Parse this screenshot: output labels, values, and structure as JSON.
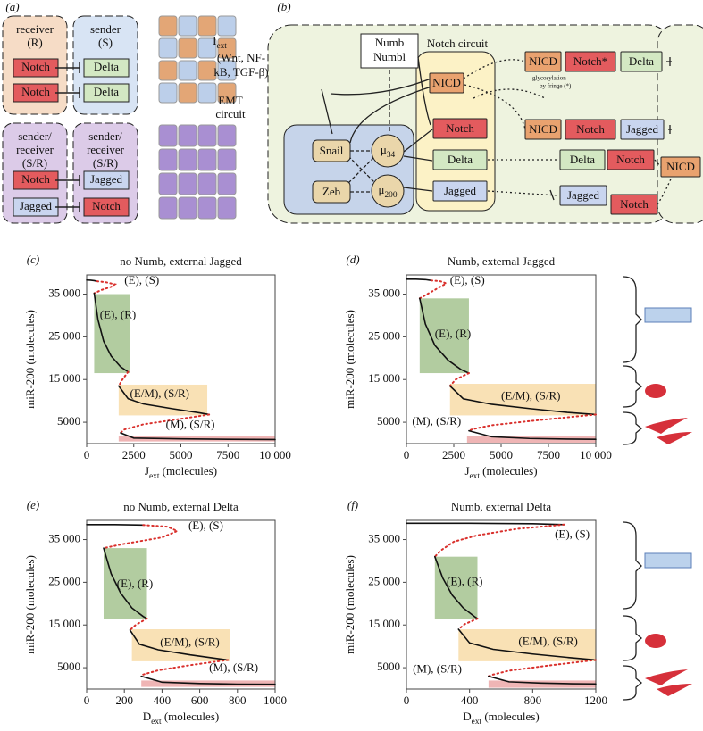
{
  "panel_a": {
    "label": "(a)",
    "cells": [
      {
        "title": [
          "receiver",
          "(R)"
        ],
        "genes": [
          "Notch",
          "Notch"
        ]
      },
      {
        "title": [
          "sender",
          "(S)"
        ],
        "genes": [
          "Delta",
          "Delta"
        ]
      },
      {
        "title": [
          "sender/",
          "receiver",
          "(S/R)"
        ],
        "genes": [
          "Notch",
          "Jagged"
        ]
      },
      {
        "title": [
          "sender/",
          "receiver",
          "(S/R)"
        ],
        "genes": [
          "Jagged",
          "Notch"
        ]
      }
    ]
  },
  "panel_b": {
    "label": "(b)",
    "input": {
      "symbol": "I",
      "sub": "ext",
      "lines": [
        "(Wnt, NF-",
        "kB, TGF-β)"
      ]
    },
    "emt_label": [
      "EMT",
      "circuit"
    ],
    "numb": [
      "Numb",
      "Numbl"
    ],
    "notch_label": "Notch circuit",
    "fringe_note": [
      "glycosylation",
      "by fringe (*)"
    ],
    "mirs": [
      {
        "symbol": "μ",
        "sub": "34"
      },
      {
        "symbol": "μ",
        "sub": "200"
      }
    ],
    "boxes": [
      "NICD",
      "Notch",
      "Delta",
      "Jagged",
      "Snail",
      "Zeb",
      "NICD",
      "Notch*",
      "Delta",
      "NICD",
      "Notch",
      "Jagged",
      "Delta",
      "Notch",
      "NICD",
      "Jagged",
      "Notch"
    ]
  },
  "chart_data": [
    {
      "type": "line",
      "panel": "(c)",
      "title": "no Numb, external Jagged",
      "xlabel": [
        "J",
        "ext",
        " (molecules)"
      ],
      "ylabel": "miR-200 (molecules)",
      "xlim": [
        0,
        10000
      ],
      "ylim": [
        0,
        39500
      ],
      "xticks": [
        0,
        2500,
        5000,
        7500,
        {
          "value": 10000,
          "label": "10 000"
        }
      ],
      "yticks": [
        5000,
        {
          "value": 15000,
          "label": "15 000"
        },
        {
          "value": 25000,
          "label": "25 000"
        },
        {
          "value": 35000,
          "label": "35 000"
        }
      ],
      "regions": [
        {
          "color": "#9fbf88",
          "xlim": [
            400,
            2300
          ],
          "ylim": [
            16500,
            35000
          ]
        },
        {
          "color": "#f7d9a2",
          "xlim": [
            1700,
            6400
          ],
          "ylim": [
            6600,
            13800
          ]
        },
        {
          "color": "#eba3a3",
          "xlim": [
            1700,
            10000
          ],
          "ylim": [
            500,
            1800
          ]
        }
      ],
      "series": [
        {
          "color": "#111",
          "style": "solid",
          "x": [
            0,
            200,
            400,
            550
          ],
          "values": [
            38300,
            38250,
            38150,
            38000
          ]
        },
        {
          "color": "#d9302c",
          "style": "dotted",
          "x": [
            550,
            1000,
            1500,
            1300,
            800,
            400
          ],
          "values": [
            38000,
            37800,
            37300,
            36700,
            36000,
            35200
          ]
        },
        {
          "color": "#111",
          "style": "solid",
          "x": [
            400,
            600,
            900,
            1300,
            1800,
            2200
          ],
          "values": [
            35200,
            29000,
            24000,
            20500,
            18000,
            16800
          ]
        },
        {
          "color": "#d9302c",
          "style": "dotted",
          "x": [
            2200,
            1900,
            1700
          ],
          "values": [
            16800,
            15000,
            13500
          ]
        },
        {
          "color": "#111",
          "style": "solid",
          "x": [
            1700,
            2200,
            3000,
            4500,
            6000,
            6500
          ],
          "values": [
            13500,
            10500,
            9300,
            8200,
            7200,
            6800
          ]
        },
        {
          "color": "#d9302c",
          "style": "dotted",
          "x": [
            6500,
            5000,
            3000,
            2000,
            1800
          ],
          "values": [
            6800,
            5800,
            4500,
            3300,
            2500
          ]
        },
        {
          "color": "#111",
          "style": "solid",
          "x": [
            1800,
            2500,
            5000,
            7500,
            10000
          ],
          "values": [
            2500,
            1300,
            1100,
            1000,
            950
          ]
        }
      ],
      "annotations": [
        {
          "text": "(E), (S)",
          "x": 2000,
          "y": 38000
        },
        {
          "text": "(E), (R)",
          "x": 700,
          "y": 30000
        },
        {
          "text": "(E/M), (S/R)",
          "x": 2300,
          "y": 11500
        },
        {
          "text": "(M), (S/R)",
          "x": 4200,
          "y": 4300
        }
      ]
    },
    {
      "type": "line",
      "panel": "(d)",
      "title": "Numb, external Jagged",
      "xlabel": [
        "J",
        "ext",
        " (molecules)"
      ],
      "ylabel": "miR-200 (molecules)",
      "xlim": [
        0,
        10000
      ],
      "ylim": [
        0,
        39500
      ],
      "xticks": [
        0,
        2500,
        5000,
        7500,
        {
          "value": 10000,
          "label": "10 000"
        }
      ],
      "yticks": [
        5000,
        {
          "value": 15000,
          "label": "15 000"
        },
        {
          "value": 25000,
          "label": "25 000"
        },
        {
          "value": 35000,
          "label": "35 000"
        }
      ],
      "regions": [
        {
          "color": "#9fbf88",
          "xlim": [
            700,
            3300
          ],
          "ylim": [
            16500,
            34000
          ]
        },
        {
          "color": "#f7d9a2",
          "xlim": [
            2300,
            10000
          ],
          "ylim": [
            6600,
            14000
          ]
        },
        {
          "color": "#eba3a3",
          "xlim": [
            3200,
            10000
          ],
          "ylim": [
            200,
            1800
          ]
        }
      ],
      "series": [
        {
          "color": "#111",
          "style": "solid",
          "x": [
            0,
            500,
            1000,
            1300
          ],
          "values": [
            38500,
            38500,
            38400,
            38200
          ]
        },
        {
          "color": "#d9302c",
          "style": "dotted",
          "x": [
            1300,
            1800,
            2100,
            1700,
            1100,
            700
          ],
          "values": [
            38200,
            38000,
            37500,
            36500,
            35000,
            34000
          ]
        },
        {
          "color": "#111",
          "style": "solid",
          "x": [
            700,
            1000,
            1500,
            2200,
            2900,
            3300
          ],
          "values": [
            34000,
            28000,
            23000,
            19500,
            17300,
            16500
          ]
        },
        {
          "color": "#d9302c",
          "style": "dotted",
          "x": [
            3300,
            2600,
            2300
          ],
          "values": [
            16500,
            15000,
            13500
          ]
        },
        {
          "color": "#111",
          "style": "solid",
          "x": [
            2300,
            3000,
            4500,
            6500,
            8500,
            10000
          ],
          "values": [
            13500,
            10500,
            9200,
            8200,
            7300,
            6800
          ]
        },
        {
          "color": "#d9302c",
          "style": "dotted",
          "x": [
            10000,
            7000,
            4500,
            3500,
            3300
          ],
          "values": [
            6800,
            5500,
            4300,
            3400,
            3000
          ]
        },
        {
          "color": "#111",
          "style": "solid",
          "x": [
            3300,
            4500,
            6500,
            8500,
            10000
          ],
          "values": [
            3000,
            1600,
            1200,
            1050,
            1000
          ]
        }
      ],
      "annotations": [
        {
          "text": "(E), (S)",
          "x": 2300,
          "y": 38000
        },
        {
          "text": "(E), (R)",
          "x": 1500,
          "y": 25500
        },
        {
          "text": "(E/M), (S/R)",
          "x": 5000,
          "y": 11000
        },
        {
          "text": "(M), (S/R)",
          "x": 300,
          "y": 5000
        }
      ]
    },
    {
      "type": "line",
      "panel": "(e)",
      "title": "no Numb, external Delta",
      "xlabel": [
        "D",
        "ext",
        " (molecules)"
      ],
      "ylabel": "miR-200 (molecules)",
      "xlim": [
        0,
        1000
      ],
      "ylim": [
        0,
        39500
      ],
      "xticks": [
        0,
        200,
        400,
        600,
        800,
        1000
      ],
      "yticks": [
        5000,
        {
          "value": 15000,
          "label": "15 000"
        },
        {
          "value": 25000,
          "label": "25 000"
        },
        {
          "value": 35000,
          "label": "35 000"
        }
      ],
      "regions": [
        {
          "color": "#9fbf88",
          "xlim": [
            90,
            320
          ],
          "ylim": [
            16500,
            33000
          ]
        },
        {
          "color": "#f7d9a2",
          "xlim": [
            240,
            760
          ],
          "ylim": [
            6500,
            14000
          ]
        },
        {
          "color": "#eba3a3",
          "xlim": [
            290,
            1000
          ],
          "ylim": [
            500,
            2000
          ]
        }
      ],
      "series": [
        {
          "color": "#111",
          "style": "solid",
          "x": [
            0,
            150,
            300
          ],
          "values": [
            38500,
            38500,
            38400
          ]
        },
        {
          "color": "#d9302c",
          "style": "dotted",
          "x": [
            300,
            430,
            480,
            400,
            200,
            90
          ],
          "values": [
            38400,
            38000,
            37000,
            35500,
            34000,
            33000
          ]
        },
        {
          "color": "#111",
          "style": "solid",
          "x": [
            90,
            130,
            180,
            240,
            300,
            320
          ],
          "values": [
            33000,
            27000,
            22500,
            19000,
            17000,
            16500
          ]
        },
        {
          "color": "#d9302c",
          "style": "dotted",
          "x": [
            320,
            260,
            230
          ],
          "values": [
            16500,
            15000,
            13800
          ]
        },
        {
          "color": "#111",
          "style": "solid",
          "x": [
            230,
            280,
            380,
            550,
            700,
            750
          ],
          "values": [
            13800,
            10500,
            9200,
            8000,
            7100,
            6800
          ]
        },
        {
          "color": "#d9302c",
          "style": "dotted",
          "x": [
            750,
            550,
            380,
            300,
            290
          ],
          "values": [
            6800,
            5600,
            4400,
            3400,
            3000
          ]
        },
        {
          "color": "#111",
          "style": "solid",
          "x": [
            290,
            400,
            600,
            800,
            1000
          ],
          "values": [
            3000,
            1600,
            1300,
            1150,
            1100
          ]
        }
      ],
      "annotations": [
        {
          "text": "(E), (S)",
          "x": 540,
          "y": 38000
        },
        {
          "text": "(E), (R)",
          "x": 160,
          "y": 24500
        },
        {
          "text": "(E/M), (S/R)",
          "x": 390,
          "y": 10800
        },
        {
          "text": "(M), (S/R)",
          "x": 650,
          "y": 4800
        }
      ]
    },
    {
      "type": "line",
      "panel": "(f)",
      "title": "Numb, external Delta",
      "xlabel": [
        "D",
        "ext",
        " (molecules)"
      ],
      "ylabel": "miR-200 (molecules)",
      "xlim": [
        0,
        1200
      ],
      "ylim": [
        0,
        39500
      ],
      "xticks": [
        0,
        400,
        800,
        1200
      ],
      "yticks": [
        5000,
        {
          "value": 15000,
          "label": "15 000"
        },
        {
          "value": 25000,
          "label": "25 000"
        },
        {
          "value": 35000,
          "label": "35 000"
        }
      ],
      "regions": [
        {
          "color": "#9fbf88",
          "xlim": [
            180,
            450
          ],
          "ylim": [
            16500,
            31000
          ]
        },
        {
          "color": "#f7d9a2",
          "xlim": [
            330,
            1200
          ],
          "ylim": [
            6500,
            14000
          ]
        },
        {
          "color": "#eba3a3",
          "xlim": [
            520,
            1200
          ],
          "ylim": [
            300,
            2000
          ]
        }
      ],
      "series": [
        {
          "color": "#111",
          "style": "solid",
          "x": [
            0,
            400,
            800,
            1000
          ],
          "values": [
            38800,
            38800,
            38700,
            38500
          ]
        },
        {
          "color": "#d9302c",
          "style": "dotted",
          "x": [
            1000,
            700,
            450,
            300,
            220,
            180
          ],
          "values": [
            38500,
            37500,
            36000,
            34500,
            32500,
            31000
          ]
        },
        {
          "color": "#111",
          "style": "solid",
          "x": [
            180,
            230,
            290,
            360,
            430,
            450
          ],
          "values": [
            31000,
            26000,
            22000,
            19000,
            17000,
            16500
          ]
        },
        {
          "color": "#d9302c",
          "style": "dotted",
          "x": [
            450,
            370,
            330
          ],
          "values": [
            16500,
            15200,
            14000
          ]
        },
        {
          "color": "#111",
          "style": "solid",
          "x": [
            330,
            400,
            550,
            800,
            1050,
            1200
          ],
          "values": [
            14000,
            10800,
            9300,
            8200,
            7300,
            6800
          ]
        },
        {
          "color": "#d9302c",
          "style": "dotted",
          "x": [
            1200,
            900,
            650,
            550,
            520
          ],
          "values": [
            6800,
            5500,
            4300,
            3400,
            3000
          ]
        },
        {
          "color": "#111",
          "style": "solid",
          "x": [
            520,
            650,
            850,
            1050,
            1200
          ],
          "values": [
            3000,
            1700,
            1400,
            1250,
            1200
          ]
        }
      ],
      "annotations": [
        {
          "text": "(E), (S)",
          "x": 940,
          "y": 36000
        },
        {
          "text": "(E), (R)",
          "x": 255,
          "y": 25000
        },
        {
          "text": "(E/M), (S/R)",
          "x": 710,
          "y": 11000
        },
        {
          "text": "(M), (S/R)",
          "x": 40,
          "y": 4500
        }
      ]
    }
  ]
}
